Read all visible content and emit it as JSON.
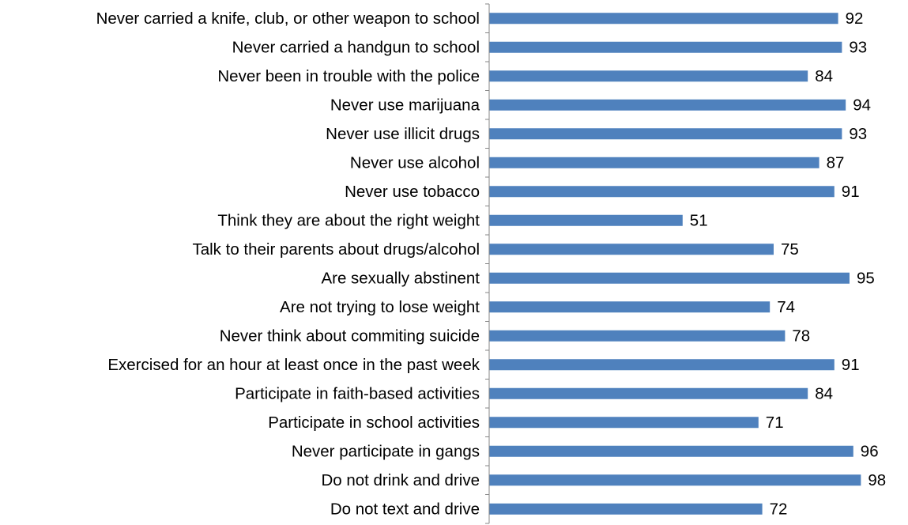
{
  "chart_data": {
    "type": "bar",
    "orientation": "horizontal",
    "categories": [
      "Never carried a knife, club, or other weapon to school",
      "Never carried a handgun to school",
      "Never been in trouble with the police",
      "Never use marijuana",
      "Never use illicit drugs",
      "Never use alcohol",
      "Never use tobacco",
      "Think they are about the right weight",
      "Talk to their parents about drugs/alcohol",
      "Are sexually abstinent",
      "Are not trying to lose weight",
      "Never think about commiting suicide",
      "Exercised for an hour at least once in the past week",
      "Participate in faith-based activities",
      "Participate in school activities",
      "Never participate in gangs",
      "Do not drink and drive",
      "Do not text and drive"
    ],
    "values": [
      92,
      93,
      84,
      94,
      93,
      87,
      91,
      51,
      75,
      95,
      74,
      78,
      91,
      84,
      71,
      96,
      98,
      72
    ],
    "xlim": [
      0,
      100
    ],
    "bar_color": "#4F81BD",
    "axis_color": "#868686",
    "data_labels": true,
    "grid": false,
    "legend": "none"
  }
}
